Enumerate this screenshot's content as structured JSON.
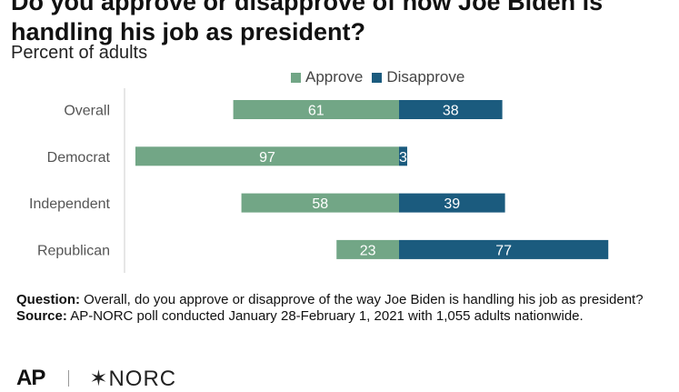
{
  "title": "Do you approve or disapprove of how Joe Biden is handling his job as president?",
  "subtitle": "Percent of adults",
  "legend": {
    "approve_label": "Approve",
    "disapprove_label": "Disapprove"
  },
  "colors": {
    "approve": "#72a686",
    "disapprove": "#1b5b7e",
    "axis": "#cccccc"
  },
  "chart_data": {
    "type": "bar",
    "orientation": "horizontal",
    "stacked": "diverging",
    "categories": [
      "Overall",
      "Democrat",
      "Independent",
      "Republican"
    ],
    "series": [
      {
        "name": "Approve",
        "values": [
          61,
          97,
          58,
          23
        ]
      },
      {
        "name": "Disapprove",
        "values": [
          38,
          3,
          39,
          77
        ]
      }
    ],
    "title": "Do you approve or disapprove of how Joe Biden is handling his job as president?",
    "subtitle": "Percent of adults",
    "xlabel": "",
    "ylabel": "",
    "legend_position": "top-center",
    "grid": false
  },
  "notes": {
    "question_label": "Question:",
    "question_text": " Overall, do you approve or disapprove of the way Joe Biden is handling his job as president?",
    "source_label": "Source:",
    "source_text": " AP-NORC poll conducted January 28-February 1, 2021 with 1,055 adults nationwide."
  },
  "logos": {
    "ap": "AP",
    "norc": "✶NORC"
  }
}
